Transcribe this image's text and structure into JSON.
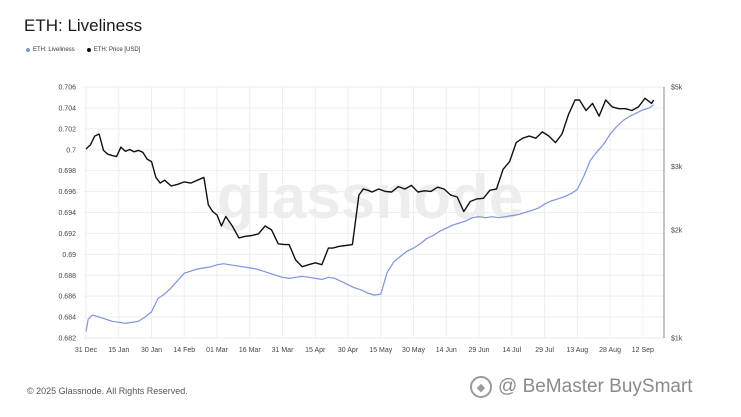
{
  "header": {
    "title": "ETH: Liveliness"
  },
  "footer": {
    "copyright": "© 2025 Glassnode. All Rights Reserved."
  },
  "watermark": {
    "text": "@ BeMaster BuySmart"
  },
  "background_watermark": "glassnode",
  "colors": {
    "liveliness": "#8193db",
    "price": "#111111",
    "grid": "#eeeeee",
    "axis": "#888888"
  },
  "chart_data": {
    "type": "line",
    "title": "ETH: Liveliness",
    "legend": {
      "position": "top-left",
      "entries": [
        "ETH: Liveliness",
        "ETH: Price [USD]"
      ]
    },
    "grid": true,
    "x_tick_labels": [
      "31 Dec",
      "15 Jan",
      "30 Jan",
      "14 Feb",
      "01 Mar",
      "16 Mar",
      "31 Mar",
      "15 Apr",
      "30 Apr",
      "15 May",
      "30 May",
      "14 Jun",
      "29 Jun",
      "14 Jul",
      "29 Jul",
      "13 Aug",
      "28 Aug",
      "12 Sep"
    ],
    "y_left": {
      "ylim": [
        0.682,
        0.706
      ],
      "tick_labels": [
        "0.682",
        "0.684",
        "0.686",
        "0.688",
        "0.69",
        "0.692",
        "0.694",
        "0.696",
        "0.698",
        "0.7",
        "0.702",
        "0.704",
        "0.706"
      ]
    },
    "y_right": {
      "scale": "log",
      "ylim": [
        1000,
        5000
      ],
      "ticks": [
        1000,
        2000,
        3000,
        5000
      ],
      "tick_labels": [
        "$1k",
        "$2k",
        "$3k",
        "$5k"
      ]
    },
    "series": [
      {
        "name": "ETH: Liveliness",
        "axis": "left",
        "x": [
          "2024-12-31",
          "2025-01-01",
          "2025-01-03",
          "2025-01-06",
          "2025-01-09",
          "2025-01-12",
          "2025-01-15",
          "2025-01-18",
          "2025-01-21",
          "2025-01-24",
          "2025-01-27",
          "2025-01-30",
          "2025-02-02",
          "2025-02-05",
          "2025-02-08",
          "2025-02-11",
          "2025-02-14",
          "2025-02-17",
          "2025-02-20",
          "2025-02-23",
          "2025-02-26",
          "2025-03-01",
          "2025-03-04",
          "2025-03-07",
          "2025-03-10",
          "2025-03-13",
          "2025-03-16",
          "2025-03-19",
          "2025-03-22",
          "2025-03-25",
          "2025-03-28",
          "2025-03-31",
          "2025-04-03",
          "2025-04-06",
          "2025-04-09",
          "2025-04-12",
          "2025-04-15",
          "2025-04-18",
          "2025-04-21",
          "2025-04-24",
          "2025-04-27",
          "2025-04-30",
          "2025-05-03",
          "2025-05-06",
          "2025-05-09",
          "2025-05-12",
          "2025-05-15",
          "2025-05-18",
          "2025-05-21",
          "2025-05-24",
          "2025-05-27",
          "2025-05-30",
          "2025-06-02",
          "2025-06-05",
          "2025-06-08",
          "2025-06-11",
          "2025-06-14",
          "2025-06-17",
          "2025-06-20",
          "2025-06-23",
          "2025-06-26",
          "2025-06-29",
          "2025-07-02",
          "2025-07-05",
          "2025-07-08",
          "2025-07-11",
          "2025-07-14",
          "2025-07-17",
          "2025-07-20",
          "2025-07-23",
          "2025-07-26",
          "2025-07-29",
          "2025-08-01",
          "2025-08-04",
          "2025-08-07",
          "2025-08-10",
          "2025-08-13",
          "2025-08-16",
          "2025-08-19",
          "2025-08-22",
          "2025-08-25",
          "2025-08-28",
          "2025-08-31",
          "2025-09-03",
          "2025-09-06",
          "2025-09-09",
          "2025-09-12",
          "2025-09-15",
          "2025-09-17"
        ],
        "y": [
          0.6826,
          0.6838,
          0.6842,
          0.684,
          0.6838,
          0.6836,
          0.6835,
          0.6834,
          0.6835,
          0.6836,
          0.684,
          0.6845,
          0.6858,
          0.6862,
          0.6868,
          0.6875,
          0.6882,
          0.6884,
          0.6886,
          0.6887,
          0.6888,
          0.689,
          0.6891,
          0.689,
          0.6889,
          0.6888,
          0.6887,
          0.6886,
          0.6884,
          0.6882,
          0.688,
          0.6878,
          0.6877,
          0.6878,
          0.6879,
          0.6878,
          0.6877,
          0.6876,
          0.6878,
          0.6877,
          0.6874,
          0.6871,
          0.6868,
          0.6866,
          0.6863,
          0.6861,
          0.6862,
          0.6883,
          0.6893,
          0.6898,
          0.6903,
          0.6906,
          0.691,
          0.6915,
          0.6918,
          0.6922,
          0.6925,
          0.6928,
          0.693,
          0.6932,
          0.6935,
          0.6936,
          0.6935,
          0.6936,
          0.6935,
          0.6936,
          0.6937,
          0.6938,
          0.694,
          0.6942,
          0.6944,
          0.6948,
          0.6951,
          0.6953,
          0.6955,
          0.6958,
          0.6962,
          0.6975,
          0.699,
          0.6998,
          0.7005,
          0.7015,
          0.7022,
          0.7028,
          0.7032,
          0.7035,
          0.7038,
          0.704,
          0.7043
        ]
      },
      {
        "name": "ETH: Price [USD]",
        "axis": "right",
        "x": [
          "2024-12-31",
          "2025-01-02",
          "2025-01-04",
          "2025-01-06",
          "2025-01-08",
          "2025-01-10",
          "2025-01-12",
          "2025-01-14",
          "2025-01-16",
          "2025-01-18",
          "2025-01-20",
          "2025-01-22",
          "2025-01-24",
          "2025-01-26",
          "2025-01-28",
          "2025-01-30",
          "2025-02-01",
          "2025-02-03",
          "2025-02-05",
          "2025-02-08",
          "2025-02-11",
          "2025-02-14",
          "2025-02-17",
          "2025-02-20",
          "2025-02-23",
          "2025-02-25",
          "2025-02-27",
          "2025-03-01",
          "2025-03-03",
          "2025-03-05",
          "2025-03-08",
          "2025-03-11",
          "2025-03-14",
          "2025-03-17",
          "2025-03-20",
          "2025-03-23",
          "2025-03-26",
          "2025-03-29",
          "2025-04-01",
          "2025-04-03",
          "2025-04-06",
          "2025-04-09",
          "2025-04-12",
          "2025-04-15",
          "2025-04-18",
          "2025-04-21",
          "2025-04-23",
          "2025-04-26",
          "2025-04-29",
          "2025-05-02",
          "2025-05-05",
          "2025-05-07",
          "2025-05-09",
          "2025-05-11",
          "2025-05-14",
          "2025-05-17",
          "2025-05-20",
          "2025-05-23",
          "2025-05-26",
          "2025-05-29",
          "2025-06-01",
          "2025-06-04",
          "2025-06-07",
          "2025-06-10",
          "2025-06-13",
          "2025-06-16",
          "2025-06-19",
          "2025-06-22",
          "2025-06-25",
          "2025-06-28",
          "2025-07-01",
          "2025-07-04",
          "2025-07-07",
          "2025-07-10",
          "2025-07-13",
          "2025-07-16",
          "2025-07-19",
          "2025-07-22",
          "2025-07-25",
          "2025-07-28",
          "2025-07-31",
          "2025-08-03",
          "2025-08-06",
          "2025-08-09",
          "2025-08-12",
          "2025-08-14",
          "2025-08-17",
          "2025-08-20",
          "2025-08-23",
          "2025-08-26",
          "2025-08-29",
          "2025-09-01",
          "2025-09-04",
          "2025-09-07",
          "2025-09-10",
          "2025-09-13",
          "2025-09-16",
          "2025-09-17"
        ],
        "y": [
          3360,
          3450,
          3650,
          3700,
          3330,
          3250,
          3220,
          3200,
          3400,
          3310,
          3350,
          3300,
          3330,
          3290,
          3150,
          3100,
          2800,
          2700,
          2750,
          2650,
          2680,
          2720,
          2700,
          2750,
          2800,
          2350,
          2250,
          2200,
          2050,
          2180,
          2050,
          1900,
          1920,
          1930,
          1950,
          2050,
          2000,
          1830,
          1820,
          1820,
          1650,
          1580,
          1600,
          1620,
          1600,
          1780,
          1780,
          1800,
          1810,
          1820,
          2500,
          2600,
          2580,
          2550,
          2600,
          2560,
          2550,
          2640,
          2600,
          2660,
          2550,
          2570,
          2560,
          2630,
          2600,
          2500,
          2470,
          2250,
          2400,
          2440,
          2450,
          2580,
          2600,
          2950,
          3100,
          3500,
          3600,
          3650,
          3600,
          3750,
          3650,
          3500,
          3700,
          4200,
          4600,
          4600,
          4300,
          4500,
          4150,
          4600,
          4400,
          4350,
          4350,
          4300,
          4400,
          4650,
          4500,
          4600
        ]
      }
    ]
  }
}
